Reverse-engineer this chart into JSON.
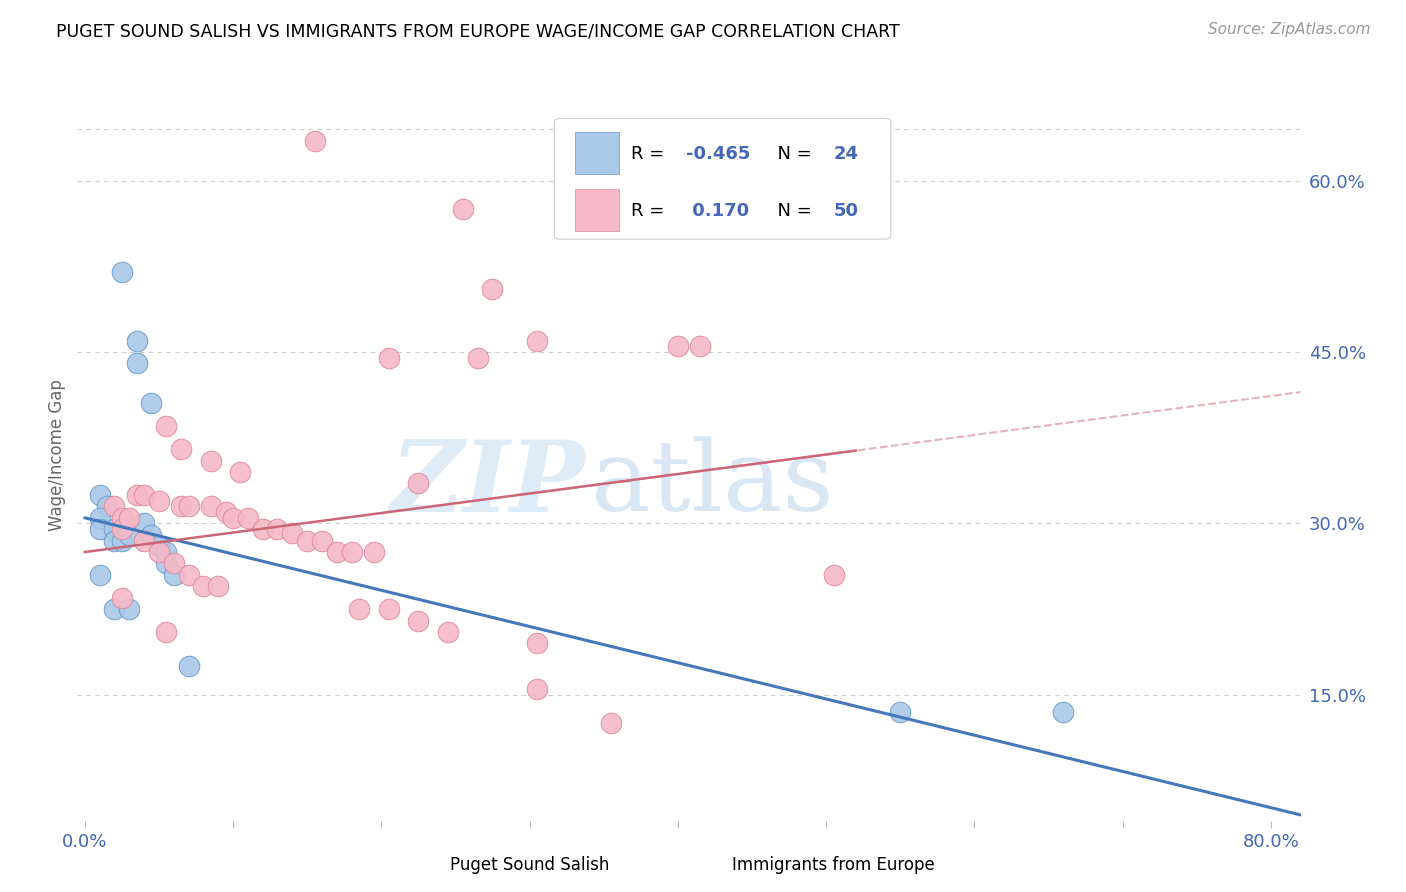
{
  "title": "PUGET SOUND SALISH VS IMMIGRANTS FROM EUROPE WAGE/INCOME GAP CORRELATION CHART",
  "source": "Source: ZipAtlas.com",
  "ylabel": "Wage/Income Gap",
  "xlim": [
    -0.005,
    0.82
  ],
  "ylim": [
    0.04,
    0.68
  ],
  "right_yticks": [
    0.15,
    0.3,
    0.45,
    0.6
  ],
  "right_yticklabels": [
    "15.0%",
    "30.0%",
    "45.0%",
    "60.0%"
  ],
  "xticks": [
    0.0,
    0.1,
    0.2,
    0.3,
    0.4,
    0.5,
    0.6,
    0.7,
    0.8
  ],
  "blue_R": -0.465,
  "blue_N": 24,
  "pink_R": 0.17,
  "pink_N": 50,
  "blue_color": "#aac8e8",
  "blue_edge_color": "#6699cc",
  "blue_line_color": "#4477bb",
  "pink_color": "#f4b8c8",
  "pink_edge_color": "#e08898",
  "pink_line_color": "#cc6677",
  "blue_line_x0": 0.0,
  "blue_line_y0": 0.305,
  "blue_line_x1": 0.82,
  "blue_line_y1": 0.045,
  "pink_line_x0": 0.0,
  "pink_line_y0": 0.275,
  "pink_line_x1": 0.82,
  "pink_line_y1": 0.415,
  "blue_scatter": [
    [
      0.025,
      0.52
    ],
    [
      0.035,
      0.46
    ],
    [
      0.035,
      0.44
    ],
    [
      0.045,
      0.405
    ],
    [
      0.01,
      0.325
    ],
    [
      0.015,
      0.315
    ],
    [
      0.01,
      0.305
    ],
    [
      0.01,
      0.295
    ],
    [
      0.02,
      0.295
    ],
    [
      0.02,
      0.285
    ],
    [
      0.025,
      0.285
    ],
    [
      0.03,
      0.29
    ],
    [
      0.04,
      0.3
    ],
    [
      0.045,
      0.29
    ],
    [
      0.05,
      0.28
    ],
    [
      0.055,
      0.275
    ],
    [
      0.055,
      0.265
    ],
    [
      0.06,
      0.255
    ],
    [
      0.02,
      0.225
    ],
    [
      0.03,
      0.225
    ],
    [
      0.07,
      0.175
    ],
    [
      0.55,
      0.135
    ],
    [
      0.66,
      0.135
    ],
    [
      0.01,
      0.255
    ]
  ],
  "pink_scatter": [
    [
      0.155,
      0.635
    ],
    [
      0.255,
      0.575
    ],
    [
      0.275,
      0.505
    ],
    [
      0.305,
      0.46
    ],
    [
      0.4,
      0.455
    ],
    [
      0.415,
      0.455
    ],
    [
      0.205,
      0.445
    ],
    [
      0.265,
      0.445
    ],
    [
      0.055,
      0.385
    ],
    [
      0.065,
      0.365
    ],
    [
      0.085,
      0.355
    ],
    [
      0.105,
      0.345
    ],
    [
      0.225,
      0.335
    ],
    [
      0.035,
      0.325
    ],
    [
      0.04,
      0.325
    ],
    [
      0.05,
      0.32
    ],
    [
      0.065,
      0.315
    ],
    [
      0.07,
      0.315
    ],
    [
      0.085,
      0.315
    ],
    [
      0.095,
      0.31
    ],
    [
      0.1,
      0.305
    ],
    [
      0.11,
      0.305
    ],
    [
      0.12,
      0.295
    ],
    [
      0.13,
      0.295
    ],
    [
      0.14,
      0.292
    ],
    [
      0.15,
      0.285
    ],
    [
      0.16,
      0.285
    ],
    [
      0.17,
      0.275
    ],
    [
      0.18,
      0.275
    ],
    [
      0.195,
      0.275
    ],
    [
      0.02,
      0.315
    ],
    [
      0.025,
      0.305
    ],
    [
      0.025,
      0.295
    ],
    [
      0.03,
      0.305
    ],
    [
      0.04,
      0.285
    ],
    [
      0.05,
      0.275
    ],
    [
      0.06,
      0.265
    ],
    [
      0.07,
      0.255
    ],
    [
      0.08,
      0.245
    ],
    [
      0.09,
      0.245
    ],
    [
      0.185,
      0.225
    ],
    [
      0.205,
      0.225
    ],
    [
      0.225,
      0.215
    ],
    [
      0.245,
      0.205
    ],
    [
      0.305,
      0.195
    ],
    [
      0.305,
      0.155
    ],
    [
      0.355,
      0.125
    ],
    [
      0.505,
      0.255
    ],
    [
      0.025,
      0.235
    ],
    [
      0.055,
      0.205
    ]
  ],
  "watermark_zip": "ZIP",
  "watermark_atlas": "atlas",
  "background_color": "#ffffff",
  "grid_color": "#cccccc",
  "legend_color": "#4466bb"
}
